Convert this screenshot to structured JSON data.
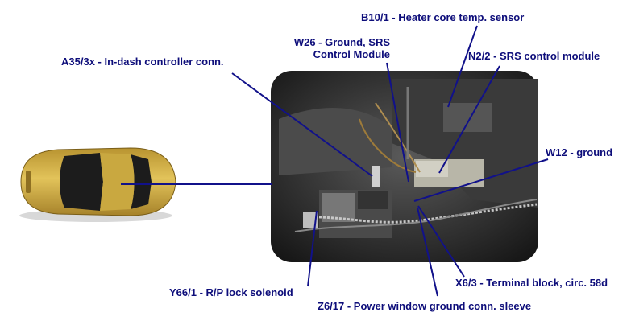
{
  "labels": {
    "b10_1": "B10/1 - Heater core temp. sensor",
    "w26_line1": "W26 - Ground, SRS",
    "w26_line2": "Control Module",
    "a35_3x": "A35/3x - In-dash controller conn.",
    "n2_2": "N2/2 - SRS control module",
    "w12": "W12 - ground",
    "y66_1": "Y66/1 - R/P lock solenoid",
    "x6_3": "X6/3 - Terminal block, circ. 58d",
    "z6_17": "Z6/17 - Power window ground conn. sleeve"
  },
  "colors": {
    "label_text": "#0d0d7a",
    "leader_line": "#11118a",
    "car_body": "#d8b548",
    "photo_background": "#2f2f2f"
  },
  "icons": {
    "vehicle": "car-top-view-icon",
    "photo": "interior-console-photo"
  }
}
